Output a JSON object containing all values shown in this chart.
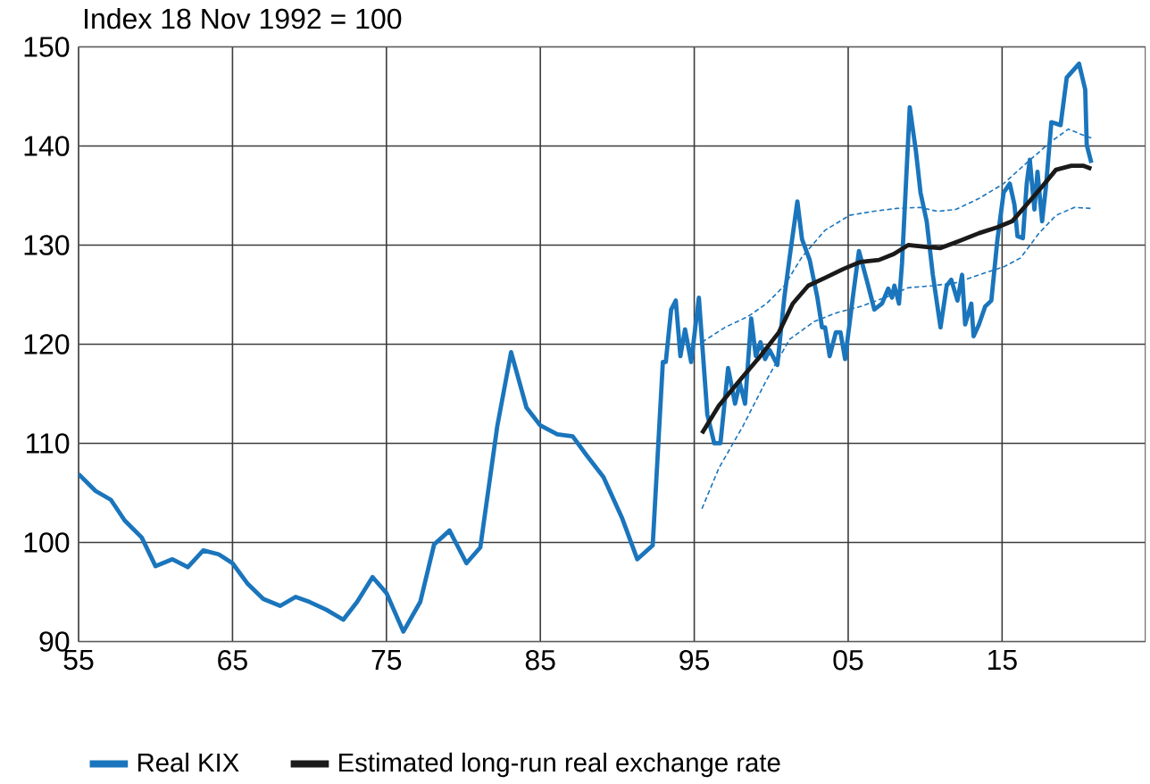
{
  "chart_data": {
    "type": "line",
    "title": "Index 18 Nov 1992 = 100",
    "xlim": [
      1955,
      2024.3
    ],
    "xticks": [
      {
        "value": 1955,
        "label": "55"
      },
      {
        "value": 1965,
        "label": "65"
      },
      {
        "value": 1975,
        "label": "75"
      },
      {
        "value": 1985,
        "label": "85"
      },
      {
        "value": 1995,
        "label": "95"
      },
      {
        "value": 2005,
        "label": "05"
      },
      {
        "value": 2015,
        "label": "15"
      }
    ],
    "ylim": [
      90,
      150
    ],
    "yticks": [
      90,
      100,
      110,
      120,
      130,
      140,
      150
    ],
    "grid": true,
    "legend": "bottom",
    "series": [
      {
        "name": "Real KIX",
        "color": "#1a75bc",
        "line_style": "solid",
        "x": [
          1955,
          1956.1,
          1957.1,
          1958.0,
          1959.1,
          1960.0,
          1961.1,
          1962.1,
          1963.1,
          1964.1,
          1965,
          1966,
          1967,
          1968.1,
          1969.1,
          1970,
          1971.1,
          1972.2,
          1973.1,
          1974.1,
          1975,
          1976.1,
          1977.2,
          1978.1,
          1979.1,
          1980.2,
          1981.1,
          1982.2,
          1983.1,
          1984.1,
          1985,
          1986.1,
          1987.1,
          1988.0,
          1989.1,
          1990.3,
          1991.3,
          1992.3,
          1992.96,
          1993.15,
          1993.5,
          1993.8,
          1994.1,
          1994.4,
          1994.8,
          1995.3,
          1995.85,
          1996.3,
          1996.7,
          1997.2,
          1997.65,
          1997.96,
          1998.3,
          1998.7,
          1999.0,
          1999.3,
          1999.6,
          1999.9,
          2000.4,
          2000.85,
          2001.2,
          2001.7,
          2002.0,
          2002.5,
          2003.0,
          2003.3,
          2003.5,
          2003.8,
          2004.2,
          2004.5,
          2004.8,
          2005.3,
          2005.7,
          2006.2,
          2006.7,
          2007.2,
          2007.6,
          2007.85,
          2008.0,
          2008.3,
          2008.5,
          2009.0,
          2009.4,
          2009.7,
          2010.1,
          2010.5,
          2011.0,
          2011.4,
          2011.7,
          2012.1,
          2012.4,
          2012.6,
          2013.0,
          2013.15,
          2013.5,
          2013.9,
          2014.3,
          2014.7,
          2015.1,
          2015.5,
          2015.8,
          2016.0,
          2016.35,
          2016.6,
          2016.8,
          2017.1,
          2017.3,
          2017.6,
          2017.85,
          2018.2,
          2018.8,
          2019.2,
          2020.0,
          2020.4,
          2020.5,
          2020.8
        ],
        "values": [
          106.9,
          105.2,
          104.3,
          102.2,
          100.5,
          97.6,
          98.3,
          97.5,
          99.2,
          98.8,
          97.9,
          95.8,
          94.3,
          93.6,
          94.5,
          94.0,
          93.2,
          92.2,
          94.0,
          96.5,
          94.9,
          91.0,
          94.0,
          99.8,
          101.2,
          97.9,
          99.5,
          111.7,
          119.2,
          113.6,
          111.8,
          110.9,
          110.7,
          108.8,
          106.6,
          102.5,
          98.3,
          99.7,
          118.2,
          118.2,
          123.5,
          124.4,
          118.8,
          121.5,
          118.2,
          124.7,
          112.9,
          110.0,
          110.0,
          117.6,
          114.0,
          116.1,
          114.0,
          122.6,
          118.8,
          120.2,
          118.5,
          119.4,
          117.9,
          124.7,
          128.8,
          134.4,
          130.6,
          128.5,
          124.7,
          121.7,
          121.7,
          118.8,
          121.2,
          121.2,
          118.5,
          124.7,
          129.4,
          126.5,
          123.5,
          124.1,
          125.6,
          124.7,
          125.9,
          124.1,
          128.2,
          143.9,
          139.5,
          135.3,
          132.4,
          127.0,
          121.7,
          125.9,
          126.5,
          124.4,
          127.0,
          122.0,
          124.1,
          120.8,
          122.0,
          123.8,
          124.4,
          130.6,
          135.3,
          136.2,
          134.1,
          130.9,
          130.7,
          136.2,
          138.6,
          133.6,
          137.4,
          132.4,
          135.9,
          142.4,
          142.1,
          146.9,
          148.3,
          145.7,
          140.1,
          138.3
        ]
      },
      {
        "color": "#1a75bc",
        "line_style": "dashed",
        "x": [
          1995.5,
          1997.0,
          1998.5,
          1999.7,
          2000.85,
          2002.0,
          2003.5,
          2005.1,
          2006.6,
          2008.15,
          2009.7,
          2010.8,
          2012.0,
          2013.5,
          2015.1,
          2016.6,
          2018.15,
          2019.3,
          2020.1,
          2020.8
        ],
        "values": [
          120.2,
          121.7,
          122.8,
          124.1,
          125.9,
          128.8,
          131.5,
          133.0,
          133.4,
          133.7,
          133.8,
          133.4,
          133.6,
          134.7,
          136.2,
          138.3,
          140.4,
          141.7,
          141.2,
          140.8
        ]
      },
      {
        "color": "#1a75bc",
        "line_style": "dashed",
        "x": [
          1995.5,
          1996.6,
          1998.15,
          1999.7,
          2001.2,
          2002.8,
          2004.3,
          2005.8,
          2007.4,
          2008.9,
          2010.5,
          2012.0,
          2013.5,
          2015.1,
          2016.2,
          2017.4,
          2018.5,
          2019.7,
          2020.8
        ],
        "values": [
          103.4,
          107.5,
          111.7,
          116.4,
          120.5,
          122.3,
          123.2,
          123.8,
          124.7,
          125.7,
          125.9,
          126.2,
          127.0,
          127.8,
          128.7,
          131.2,
          133.0,
          133.8,
          133.7
        ]
      },
      {
        "name": "Estimated long-run real exchange rate",
        "color": "#1a1a1a",
        "line_style": "solid",
        "x": [
          1995.5,
          1996.6,
          1998.15,
          1999.3,
          2000.5,
          2001.4,
          2002.4,
          2003.5,
          2004.7,
          2005.8,
          2007.0,
          2007.96,
          2008.9,
          2010.1,
          2011.0,
          2012.2,
          2013.5,
          2014.7,
          2015.65,
          2016.6,
          2017.6,
          2018.5,
          2019.5,
          2020.3,
          2020.8
        ],
        "values": [
          111.0,
          113.8,
          116.7,
          118.8,
          121.2,
          124.1,
          125.9,
          126.7,
          127.6,
          128.3,
          128.5,
          129.1,
          130.0,
          129.8,
          129.7,
          130.4,
          131.2,
          131.8,
          132.4,
          134.1,
          135.9,
          137.6,
          138.0,
          138.0,
          137.7
        ]
      }
    ]
  }
}
